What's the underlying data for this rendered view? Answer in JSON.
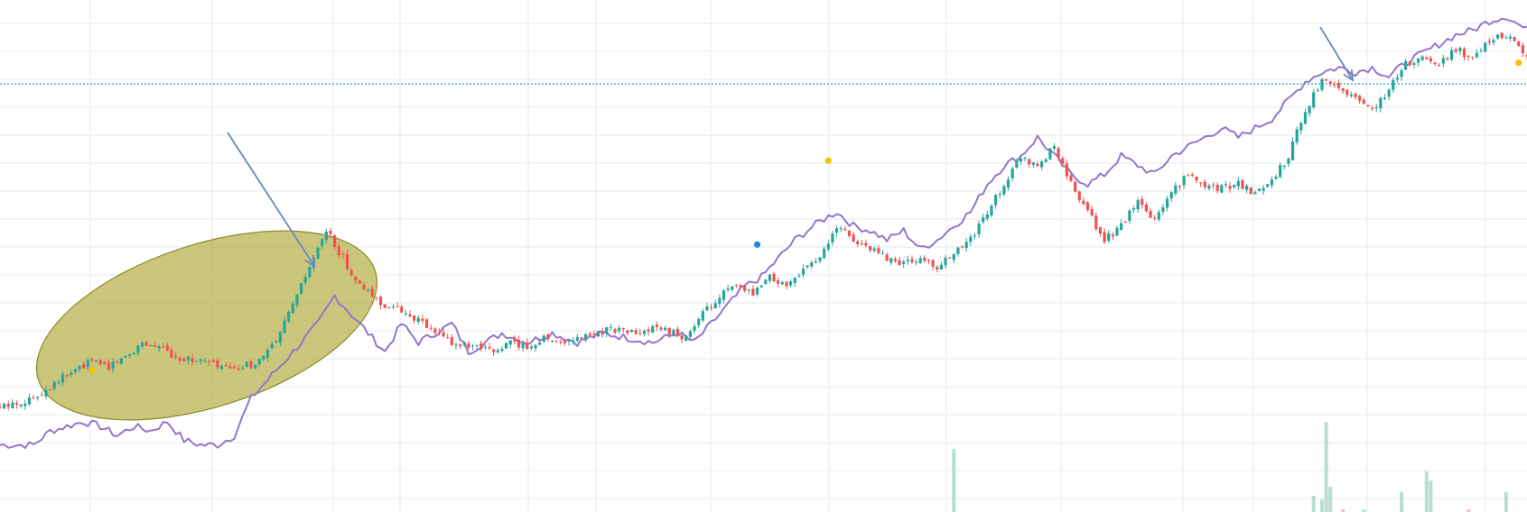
{
  "chart_data": {
    "type": "line",
    "title": "",
    "xlabel": "",
    "ylabel": "",
    "grid": true,
    "legend": "none",
    "x_index_range": [
      0,
      365
    ],
    "y_range_relative": [
      0,
      100
    ],
    "colors": {
      "up": "#26a69a",
      "down": "#ef5350",
      "line": "#9575cd",
      "grid": "#e3ebf0",
      "hline": "#26a0c3",
      "ellipse_fill": "#b5b04a",
      "ellipse_stroke": "#8f8a2c",
      "arrow": "#6f87bf",
      "dot_yellow": "#f5c400",
      "dot_blue": "#1e88e5"
    },
    "price_series": {
      "name": "",
      "description_values": [
        [
          0,
          16
        ],
        [
          8,
          18
        ],
        [
          14,
          22
        ],
        [
          18,
          24
        ],
        [
          22,
          26
        ],
        [
          26,
          25
        ],
        [
          30,
          27
        ],
        [
          34,
          30
        ],
        [
          38,
          29
        ],
        [
          42,
          27
        ],
        [
          48,
          26
        ],
        [
          52,
          25
        ],
        [
          56,
          24
        ],
        [
          62,
          26
        ],
        [
          66,
          30
        ],
        [
          70,
          38
        ],
        [
          74,
          46
        ],
        [
          78,
          54
        ],
        [
          82,
          48
        ],
        [
          86,
          42
        ],
        [
          92,
          38
        ],
        [
          98,
          36
        ],
        [
          104,
          32
        ],
        [
          108,
          30
        ],
        [
          112,
          29
        ],
        [
          118,
          28
        ],
        [
          122,
          30
        ],
        [
          126,
          29
        ],
        [
          130,
          31
        ],
        [
          136,
          30
        ],
        [
          142,
          32
        ],
        [
          146,
          33
        ],
        [
          152,
          32
        ],
        [
          158,
          33
        ],
        [
          164,
          31
        ],
        [
          168,
          36
        ],
        [
          172,
          40
        ],
        [
          176,
          42
        ],
        [
          180,
          40
        ],
        [
          184,
          44
        ],
        [
          188,
          42
        ],
        [
          192,
          46
        ],
        [
          196,
          48
        ],
        [
          200,
          55
        ],
        [
          204,
          52
        ],
        [
          208,
          50
        ],
        [
          212,
          48
        ],
        [
          216,
          47
        ],
        [
          220,
          48
        ],
        [
          224,
          46
        ],
        [
          228,
          49
        ],
        [
          232,
          52
        ],
        [
          236,
          58
        ],
        [
          240,
          64
        ],
        [
          244,
          70
        ],
        [
          248,
          68
        ],
        [
          252,
          72
        ],
        [
          256,
          64
        ],
        [
          260,
          58
        ],
        [
          264,
          52
        ],
        [
          268,
          55
        ],
        [
          272,
          60
        ],
        [
          276,
          56
        ],
        [
          280,
          62
        ],
        [
          284,
          66
        ],
        [
          288,
          64
        ],
        [
          292,
          63
        ],
        [
          296,
          64
        ],
        [
          300,
          62
        ],
        [
          304,
          65
        ],
        [
          308,
          70
        ],
        [
          312,
          80
        ],
        [
          316,
          86
        ],
        [
          320,
          84
        ],
        [
          324,
          83
        ],
        [
          328,
          80
        ],
        [
          332,
          84
        ],
        [
          336,
          90
        ],
        [
          340,
          91
        ],
        [
          344,
          90
        ],
        [
          348,
          93
        ],
        [
          352,
          91
        ],
        [
          356,
          95
        ],
        [
          360,
          96
        ],
        [
          365,
          92
        ]
      ]
    },
    "line_series": {
      "name": "",
      "description_values": [
        [
          0,
          8
        ],
        [
          8,
          8
        ],
        [
          12,
          11
        ],
        [
          16,
          12
        ],
        [
          20,
          13
        ],
        [
          24,
          12
        ],
        [
          28,
          10
        ],
        [
          32,
          12
        ],
        [
          36,
          11
        ],
        [
          40,
          13
        ],
        [
          44,
          9
        ],
        [
          48,
          8
        ],
        [
          52,
          8
        ],
        [
          56,
          10
        ],
        [
          60,
          18
        ],
        [
          64,
          22
        ],
        [
          68,
          26
        ],
        [
          72,
          30
        ],
        [
          76,
          34
        ],
        [
          80,
          40
        ],
        [
          84,
          36
        ],
        [
          88,
          32
        ],
        [
          92,
          28
        ],
        [
          96,
          34
        ],
        [
          100,
          30
        ],
        [
          104,
          32
        ],
        [
          108,
          34
        ],
        [
          112,
          28
        ],
        [
          116,
          30
        ],
        [
          120,
          32
        ],
        [
          126,
          30
        ],
        [
          132,
          32
        ],
        [
          138,
          30
        ],
        [
          144,
          32
        ],
        [
          150,
          31
        ],
        [
          156,
          30
        ],
        [
          162,
          32
        ],
        [
          166,
          30
        ],
        [
          170,
          34
        ],
        [
          174,
          38
        ],
        [
          178,
          42
        ],
        [
          182,
          44
        ],
        [
          186,
          48
        ],
        [
          190,
          52
        ],
        [
          196,
          56
        ],
        [
          200,
          58
        ],
        [
          204,
          55
        ],
        [
          208,
          54
        ],
        [
          212,
          52
        ],
        [
          216,
          54
        ],
        [
          220,
          50
        ],
        [
          224,
          52
        ],
        [
          228,
          55
        ],
        [
          232,
          58
        ],
        [
          236,
          64
        ],
        [
          240,
          68
        ],
        [
          244,
          70
        ],
        [
          248,
          74
        ],
        [
          252,
          70
        ],
        [
          256,
          66
        ],
        [
          260,
          64
        ],
        [
          264,
          66
        ],
        [
          268,
          70
        ],
        [
          272,
          68
        ],
        [
          276,
          66
        ],
        [
          280,
          70
        ],
        [
          284,
          72
        ],
        [
          288,
          74
        ],
        [
          292,
          76
        ],
        [
          296,
          74
        ],
        [
          300,
          76
        ],
        [
          304,
          78
        ],
        [
          308,
          82
        ],
        [
          312,
          86
        ],
        [
          316,
          88
        ],
        [
          320,
          89
        ],
        [
          324,
          88
        ],
        [
          328,
          89
        ],
        [
          332,
          87
        ],
        [
          336,
          90
        ],
        [
          340,
          92
        ],
        [
          344,
          94
        ],
        [
          348,
          96
        ],
        [
          352,
          97
        ],
        [
          356,
          99
        ],
        [
          360,
          100
        ],
        [
          365,
          97
        ]
      ]
    },
    "volume_bars": [
      {
        "x": 228,
        "value": 70,
        "color": "#b7dfd0"
      },
      {
        "x": 314,
        "value": 18,
        "color": "#b7dfd0"
      },
      {
        "x": 316,
        "value": 14,
        "color": "#b7dfd0"
      },
      {
        "x": 317,
        "value": 100,
        "color": "#b7dfd0"
      },
      {
        "x": 318,
        "value": 28,
        "color": "#b7dfd0"
      },
      {
        "x": 321,
        "value": 3,
        "color": "#f6c0bd"
      },
      {
        "x": 326,
        "value": 3,
        "color": "#b7dfd0"
      },
      {
        "x": 335,
        "value": 22,
        "color": "#b7dfd0"
      },
      {
        "x": 341,
        "value": 45,
        "color": "#b7dfd0"
      },
      {
        "x": 342,
        "value": 35,
        "color": "#b7dfd0"
      },
      {
        "x": 351,
        "value": 3,
        "color": "#f6c0bd"
      },
      {
        "x": 360,
        "value": 22,
        "color": "#b7dfd0"
      }
    ],
    "markers": [
      {
        "x": 22,
        "y": 24,
        "kind": "dot_yellow"
      },
      {
        "x": 198,
        "y": 69,
        "kind": "dot_yellow"
      },
      {
        "x": 181,
        "y": 51,
        "kind": "dot_blue"
      },
      {
        "x": 363,
        "y": 90,
        "kind": "dot_yellow"
      }
    ],
    "annotations": [
      {
        "kind": "ellipse",
        "label": ""
      },
      {
        "kind": "arrow",
        "label": ""
      },
      {
        "kind": "arrow",
        "label": ""
      },
      {
        "kind": "horizontal-line",
        "label": ""
      }
    ]
  }
}
